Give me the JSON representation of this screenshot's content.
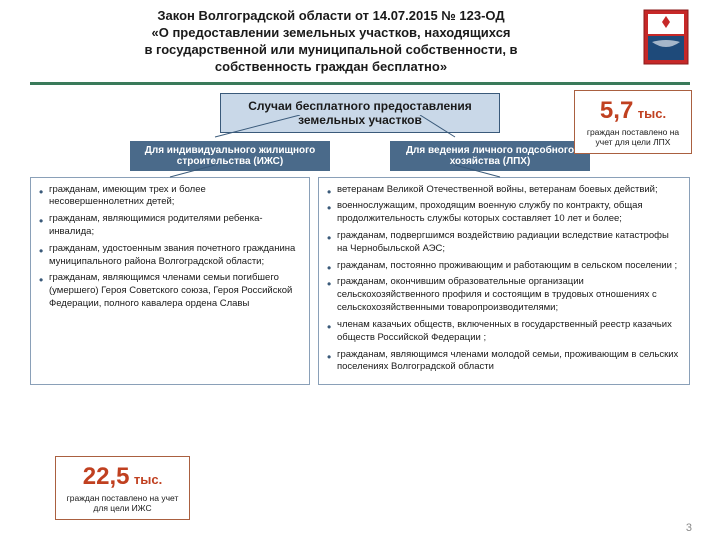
{
  "title": {
    "line1": "Закон Волгоградской области от 14.07.2015  № 123-ОД",
    "line2": "«О предоставлении земельных участков, находящихся",
    "line3": "в государственной или муниципальной собственности, в",
    "line4": "собственность граждан бесплатно»"
  },
  "colors": {
    "hr": "#3a7a5a",
    "box_main_bg": "#c9d8e8",
    "box_main_border": "#3a5a7a",
    "box_sub_bg": "#4a6a8a",
    "col_border": "#8aa0b8",
    "bullet": "#3a5a7a",
    "stat_border": "#aa6040",
    "stat_num": "#c04020",
    "page_bg": "#ffffff",
    "emblem_red": "#c62828",
    "emblem_white": "#ffffff",
    "emblem_blue": "#1e4a7a"
  },
  "main_box": "Случаи бесплатного предоставления земельных участков",
  "sub_left": "Для индивидуального жилищного строительства  (ИЖС)",
  "sub_right": "Для ведения личного подсобного хозяйства (ЛПХ)",
  "left_bullets": [
    "гражданам, имеющим трех и более несовершеннолетних детей;",
    "гражданам, являющимися родителями ребенка-инвалида;",
    "гражданам, удостоенным звания почетного гражданина муниципального района Волгоградской области;",
    "гражданам, являющимся членами семьи погибшего (умершего) Героя Советского союза, Героя Российской Федерации, полного кавалера ордена Славы"
  ],
  "right_bullets": [
    "ветеранам Великой Отечественной войны, ветеранам боевых действий;",
    "военнослужащим, проходящим военную службу по контракту, общая продолжительность службы которых составляет 10 лет и более;",
    "гражданам, подвергшимся воздействию радиации вследствие катастрофы на Чернобыльской АЭС;",
    "гражданам, постоянно проживающим и работающим в сельском поселении ;",
    "гражданам, окончившим образовательные организации сельскохозяйственного профиля и состоящим в трудовых отношениях с сельскохозяйственными товаропроизводителями;",
    "членам казачьих обществ, включенных в государственный реестр казачьих обществ Российской Федерации ;",
    "гражданам, являющимся членами молодой семьи, проживающим в сельских поселениях Волгоградской области"
  ],
  "stat_tr": {
    "num": "5,7",
    "unit": "тыс.",
    "sub": "граждан поставлено на учет для цели ЛПХ"
  },
  "stat_bl": {
    "num": "22,5",
    "unit": "тыс.",
    "sub": "граждан поставлено на учет для цели  ИЖС"
  },
  "page_number": "3"
}
